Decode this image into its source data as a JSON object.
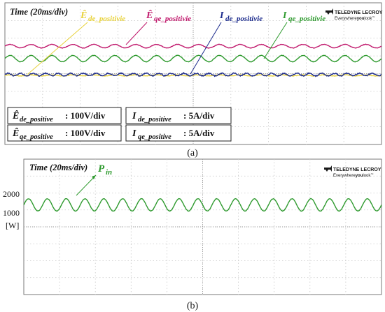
{
  "colors": {
    "yellow": "#e8d23a",
    "magenta": "#c0186c",
    "green": "#2e9a2e",
    "blue": "#1b2a8c",
    "ylabel_green": "#2e9a2e",
    "grid": "#c8c8c8",
    "frame": "#7a7a7a",
    "logo": "#1a1a1a"
  },
  "logo": {
    "brand": "TELEDYNE LECROY",
    "tagline_a": "Everywhere",
    "tagline_b": "you",
    "tagline_c": "look",
    "tagline_tm": "™"
  },
  "panel_a": {
    "time_label": "Time (20ms/div)",
    "caption": "(a)",
    "legend_entries": [
      {
        "sym": "Ê",
        "sub": "de_positivie",
        "color_key": "yellow"
      },
      {
        "sym": "Ê",
        "sub": "qe_positivie",
        "color_key": "magenta"
      },
      {
        "sym": "I",
        "sub": "de_positivie",
        "color_key": "blue"
      },
      {
        "sym": "I",
        "sub": "qe_positivie",
        "color_key": "green"
      }
    ],
    "scale_boxes": [
      {
        "sym": "Ê",
        "sub": "de_positive",
        "scale": ": 100V/div"
      },
      {
        "sym": "I",
        "sub": "de_positive",
        "scale": ": 5A/div"
      },
      {
        "sym": "Ê",
        "sub": "qe_positive",
        "scale": ": 100V/div"
      },
      {
        "sym": "I",
        "sub": "qe_positive",
        "scale": ": 5A/div"
      }
    ]
  },
  "panel_b": {
    "time_label": "Time (20ms/div)",
    "caption": "(b)",
    "series_sym": "P",
    "series_sub": "in",
    "ytick_2000": "2000",
    "ytick_1000": "1000",
    "yunit": "[W]"
  },
  "chart_data": [
    {
      "type": "line",
      "title": "",
      "xlabel": "Time (20ms/div)",
      "xlim_div": [
        0,
        10
      ],
      "x_units": "div",
      "series": [
        {
          "name": "Ê_de_positive",
          "scale": "100V/div",
          "color_key": "yellow",
          "baseline_div": -0.1,
          "ripple_pp_div": 0.06,
          "cycles": 18
        },
        {
          "name": "Ê_qe_positive",
          "scale": "100V/div",
          "color_key": "magenta",
          "baseline_div": 1.55,
          "ripple_pp_div": 0.2,
          "cycles": 18
        },
        {
          "name": "I_de_positive",
          "scale": "5A/div",
          "color_key": "blue",
          "baseline_div": -0.05,
          "ripple_pp_div": 0.14,
          "cycles": 30
        },
        {
          "name": "I_qe_positive",
          "scale": "5A/div",
          "color_key": "green",
          "baseline_div": 0.85,
          "ripple_pp_div": 0.36,
          "cycles": 18
        }
      ],
      "grid": true
    },
    {
      "type": "line",
      "title": "",
      "xlabel": "Time (20ms/div)",
      "ylabel": "[W]",
      "yticks": [
        1000,
        2000
      ],
      "series": [
        {
          "name": "P_in",
          "color_key": "green",
          "mean": 1400,
          "min": 1100,
          "max": 1750,
          "cycles": 19
        }
      ],
      "grid": true
    }
  ]
}
